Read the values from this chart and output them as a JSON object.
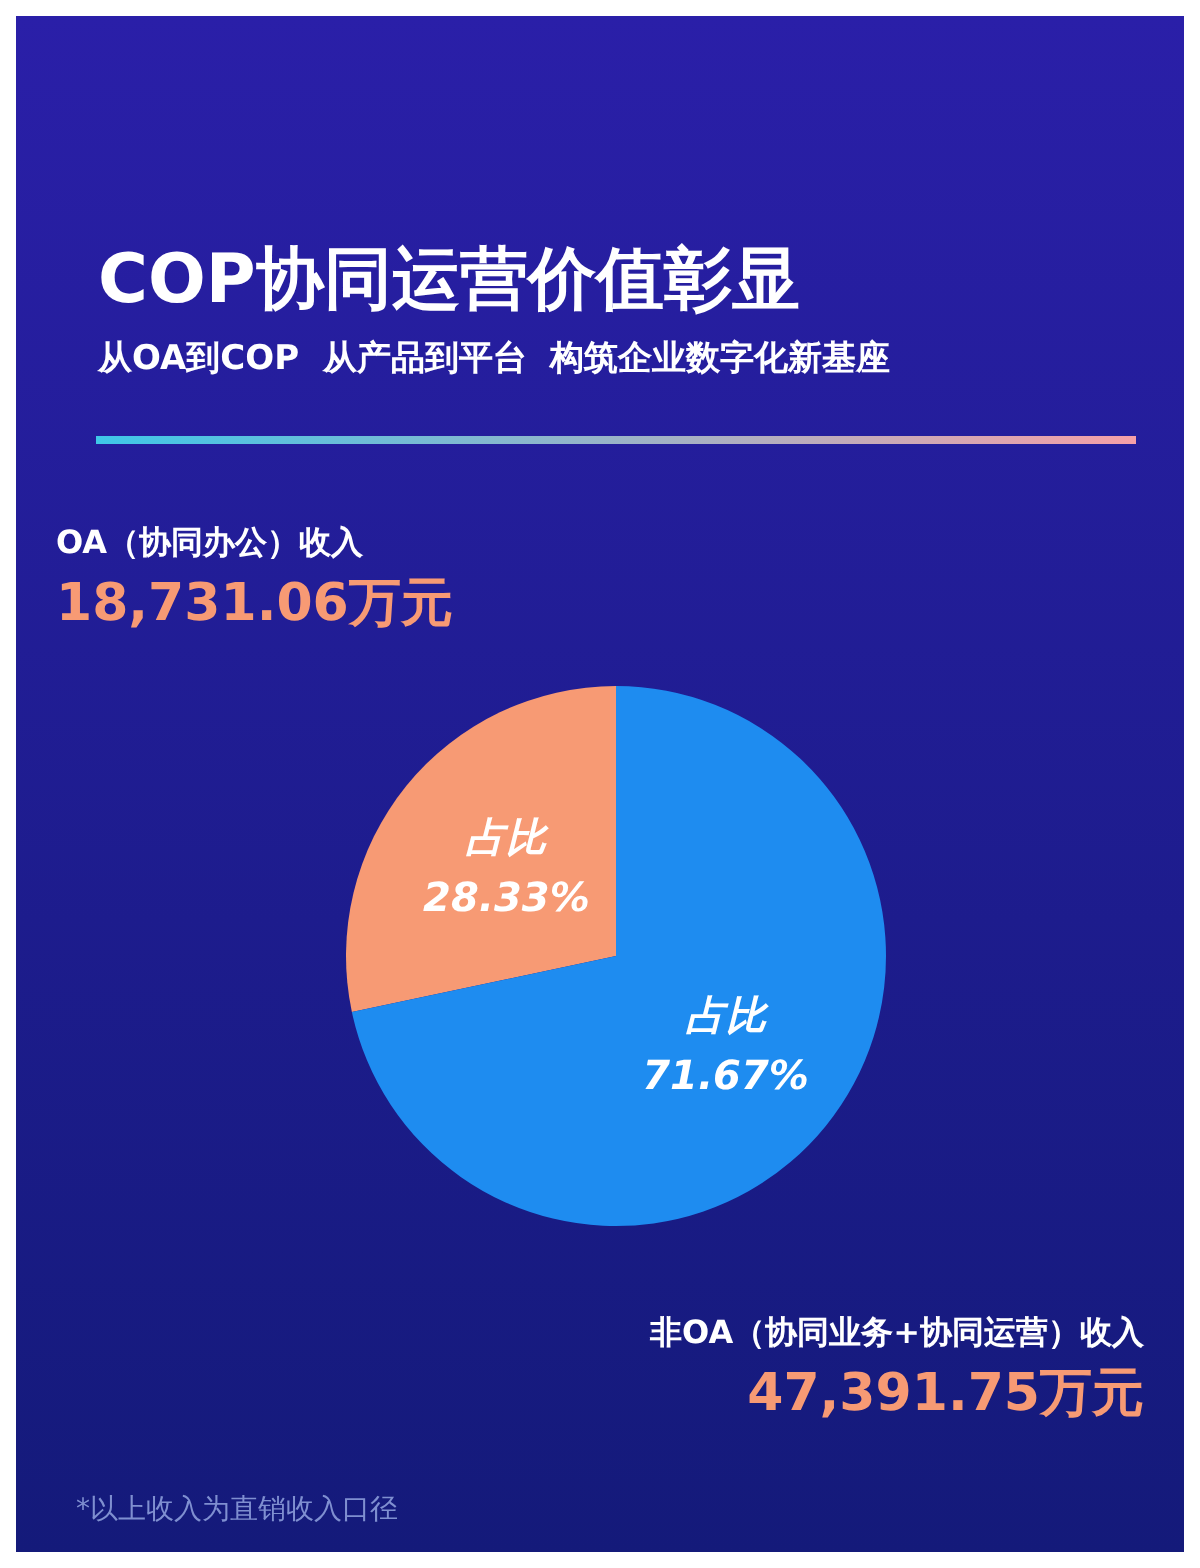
{
  "chart_data": {
    "type": "pie",
    "title": "COP协同运营价值彰显",
    "subtitle": "从OA到COP  从产品到平台  构筑企业数字化新基座",
    "categories": [
      "OA（协同办公）收入",
      "非OA（协同业务+协同运营）收入"
    ],
    "values": [
      28.33,
      71.67
    ],
    "colors": [
      "#f79a74",
      "#1e8cf0"
    ],
    "value_labels": [
      "占比\n28.33%",
      "占比\n71.67%"
    ],
    "annotations": [
      "18,731.06万元",
      "47,391.75万元",
      "*以上收入为直销收入口径"
    ],
    "legend": false
  }
}
